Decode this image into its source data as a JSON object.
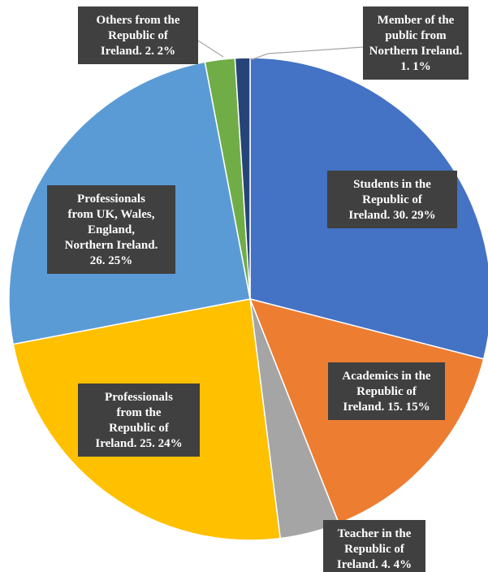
{
  "chart_data": {
    "type": "pie",
    "legend": "none",
    "slices": [
      {
        "name": "Students in the Republic of Ireland",
        "count": "30",
        "percent": 29,
        "color": "#4472C4",
        "label_lines": [
          "Students in the",
          "Republic of",
          "Ireland. 30. 29%"
        ]
      },
      {
        "name": "Academics in the Republic of Ireland",
        "count": "15",
        "percent": 15,
        "color": "#ED7D31",
        "label_lines": [
          "Academics in the",
          "Republic of",
          "Ireland. 15. 15%"
        ]
      },
      {
        "name": "Teacher in the Republic of Ireland",
        "count": "4",
        "percent": 4,
        "color": "#A5A5A5",
        "label_lines": [
          "Teacher in the",
          "Republic of",
          "Ireland. 4. 4%"
        ]
      },
      {
        "name": "Professionals from the Republic of Ireland",
        "count": "25",
        "percent": 24,
        "color": "#FFC000",
        "label_lines": [
          "Professionals",
          "from the",
          "Republic of",
          "Ireland. 25. 24%"
        ]
      },
      {
        "name": "Professionals from UK, Wales, England, Northern Ireland",
        "count": "26",
        "percent": 25,
        "color": "#5B9BD5",
        "label_lines": [
          "Professionals",
          "from UK, Wales,",
          "England,",
          "Northern Ireland.",
          "26. 25%"
        ]
      },
      {
        "name": "Others from the Republic of Ireland",
        "count": "2",
        "percent": 2,
        "color": "#70AD47",
        "label_lines": [
          "Others from the",
          "Republic of",
          "Ireland. 2. 2%"
        ]
      },
      {
        "name": "Member of the public from Northern Ireland",
        "count": "1",
        "percent": 1,
        "color": "#264478",
        "label_lines": [
          "Member of the",
          "public from",
          "Northern Ireland.",
          "1. 1%"
        ]
      }
    ]
  }
}
